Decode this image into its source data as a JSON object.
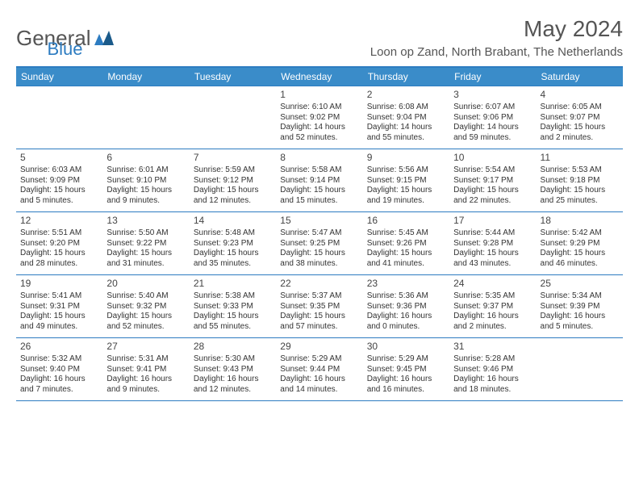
{
  "brand": {
    "part1": "General",
    "part2": "Blue"
  },
  "header": {
    "month_title": "May 2024",
    "location": "Loon op Zand, North Brabant, The Netherlands"
  },
  "colors": {
    "header_bg": "#3a8cc9",
    "border": "#2d7cc1",
    "text": "#333333",
    "title_text": "#555555"
  },
  "weekdays": [
    "Sunday",
    "Monday",
    "Tuesday",
    "Wednesday",
    "Thursday",
    "Friday",
    "Saturday"
  ],
  "weeks": [
    [
      null,
      null,
      null,
      {
        "n": "1",
        "sr": "Sunrise: 6:10 AM",
        "ss": "Sunset: 9:02 PM",
        "dl": "Daylight: 14 hours and 52 minutes."
      },
      {
        "n": "2",
        "sr": "Sunrise: 6:08 AM",
        "ss": "Sunset: 9:04 PM",
        "dl": "Daylight: 14 hours and 55 minutes."
      },
      {
        "n": "3",
        "sr": "Sunrise: 6:07 AM",
        "ss": "Sunset: 9:06 PM",
        "dl": "Daylight: 14 hours and 59 minutes."
      },
      {
        "n": "4",
        "sr": "Sunrise: 6:05 AM",
        "ss": "Sunset: 9:07 PM",
        "dl": "Daylight: 15 hours and 2 minutes."
      }
    ],
    [
      {
        "n": "5",
        "sr": "Sunrise: 6:03 AM",
        "ss": "Sunset: 9:09 PM",
        "dl": "Daylight: 15 hours and 5 minutes."
      },
      {
        "n": "6",
        "sr": "Sunrise: 6:01 AM",
        "ss": "Sunset: 9:10 PM",
        "dl": "Daylight: 15 hours and 9 minutes."
      },
      {
        "n": "7",
        "sr": "Sunrise: 5:59 AM",
        "ss": "Sunset: 9:12 PM",
        "dl": "Daylight: 15 hours and 12 minutes."
      },
      {
        "n": "8",
        "sr": "Sunrise: 5:58 AM",
        "ss": "Sunset: 9:14 PM",
        "dl": "Daylight: 15 hours and 15 minutes."
      },
      {
        "n": "9",
        "sr": "Sunrise: 5:56 AM",
        "ss": "Sunset: 9:15 PM",
        "dl": "Daylight: 15 hours and 19 minutes."
      },
      {
        "n": "10",
        "sr": "Sunrise: 5:54 AM",
        "ss": "Sunset: 9:17 PM",
        "dl": "Daylight: 15 hours and 22 minutes."
      },
      {
        "n": "11",
        "sr": "Sunrise: 5:53 AM",
        "ss": "Sunset: 9:18 PM",
        "dl": "Daylight: 15 hours and 25 minutes."
      }
    ],
    [
      {
        "n": "12",
        "sr": "Sunrise: 5:51 AM",
        "ss": "Sunset: 9:20 PM",
        "dl": "Daylight: 15 hours and 28 minutes."
      },
      {
        "n": "13",
        "sr": "Sunrise: 5:50 AM",
        "ss": "Sunset: 9:22 PM",
        "dl": "Daylight: 15 hours and 31 minutes."
      },
      {
        "n": "14",
        "sr": "Sunrise: 5:48 AM",
        "ss": "Sunset: 9:23 PM",
        "dl": "Daylight: 15 hours and 35 minutes."
      },
      {
        "n": "15",
        "sr": "Sunrise: 5:47 AM",
        "ss": "Sunset: 9:25 PM",
        "dl": "Daylight: 15 hours and 38 minutes."
      },
      {
        "n": "16",
        "sr": "Sunrise: 5:45 AM",
        "ss": "Sunset: 9:26 PM",
        "dl": "Daylight: 15 hours and 41 minutes."
      },
      {
        "n": "17",
        "sr": "Sunrise: 5:44 AM",
        "ss": "Sunset: 9:28 PM",
        "dl": "Daylight: 15 hours and 43 minutes."
      },
      {
        "n": "18",
        "sr": "Sunrise: 5:42 AM",
        "ss": "Sunset: 9:29 PM",
        "dl": "Daylight: 15 hours and 46 minutes."
      }
    ],
    [
      {
        "n": "19",
        "sr": "Sunrise: 5:41 AM",
        "ss": "Sunset: 9:31 PM",
        "dl": "Daylight: 15 hours and 49 minutes."
      },
      {
        "n": "20",
        "sr": "Sunrise: 5:40 AM",
        "ss": "Sunset: 9:32 PM",
        "dl": "Daylight: 15 hours and 52 minutes."
      },
      {
        "n": "21",
        "sr": "Sunrise: 5:38 AM",
        "ss": "Sunset: 9:33 PM",
        "dl": "Daylight: 15 hours and 55 minutes."
      },
      {
        "n": "22",
        "sr": "Sunrise: 5:37 AM",
        "ss": "Sunset: 9:35 PM",
        "dl": "Daylight: 15 hours and 57 minutes."
      },
      {
        "n": "23",
        "sr": "Sunrise: 5:36 AM",
        "ss": "Sunset: 9:36 PM",
        "dl": "Daylight: 16 hours and 0 minutes."
      },
      {
        "n": "24",
        "sr": "Sunrise: 5:35 AM",
        "ss": "Sunset: 9:37 PM",
        "dl": "Daylight: 16 hours and 2 minutes."
      },
      {
        "n": "25",
        "sr": "Sunrise: 5:34 AM",
        "ss": "Sunset: 9:39 PM",
        "dl": "Daylight: 16 hours and 5 minutes."
      }
    ],
    [
      {
        "n": "26",
        "sr": "Sunrise: 5:32 AM",
        "ss": "Sunset: 9:40 PM",
        "dl": "Daylight: 16 hours and 7 minutes."
      },
      {
        "n": "27",
        "sr": "Sunrise: 5:31 AM",
        "ss": "Sunset: 9:41 PM",
        "dl": "Daylight: 16 hours and 9 minutes."
      },
      {
        "n": "28",
        "sr": "Sunrise: 5:30 AM",
        "ss": "Sunset: 9:43 PM",
        "dl": "Daylight: 16 hours and 12 minutes."
      },
      {
        "n": "29",
        "sr": "Sunrise: 5:29 AM",
        "ss": "Sunset: 9:44 PM",
        "dl": "Daylight: 16 hours and 14 minutes."
      },
      {
        "n": "30",
        "sr": "Sunrise: 5:29 AM",
        "ss": "Sunset: 9:45 PM",
        "dl": "Daylight: 16 hours and 16 minutes."
      },
      {
        "n": "31",
        "sr": "Sunrise: 5:28 AM",
        "ss": "Sunset: 9:46 PM",
        "dl": "Daylight: 16 hours and 18 minutes."
      },
      null
    ]
  ]
}
